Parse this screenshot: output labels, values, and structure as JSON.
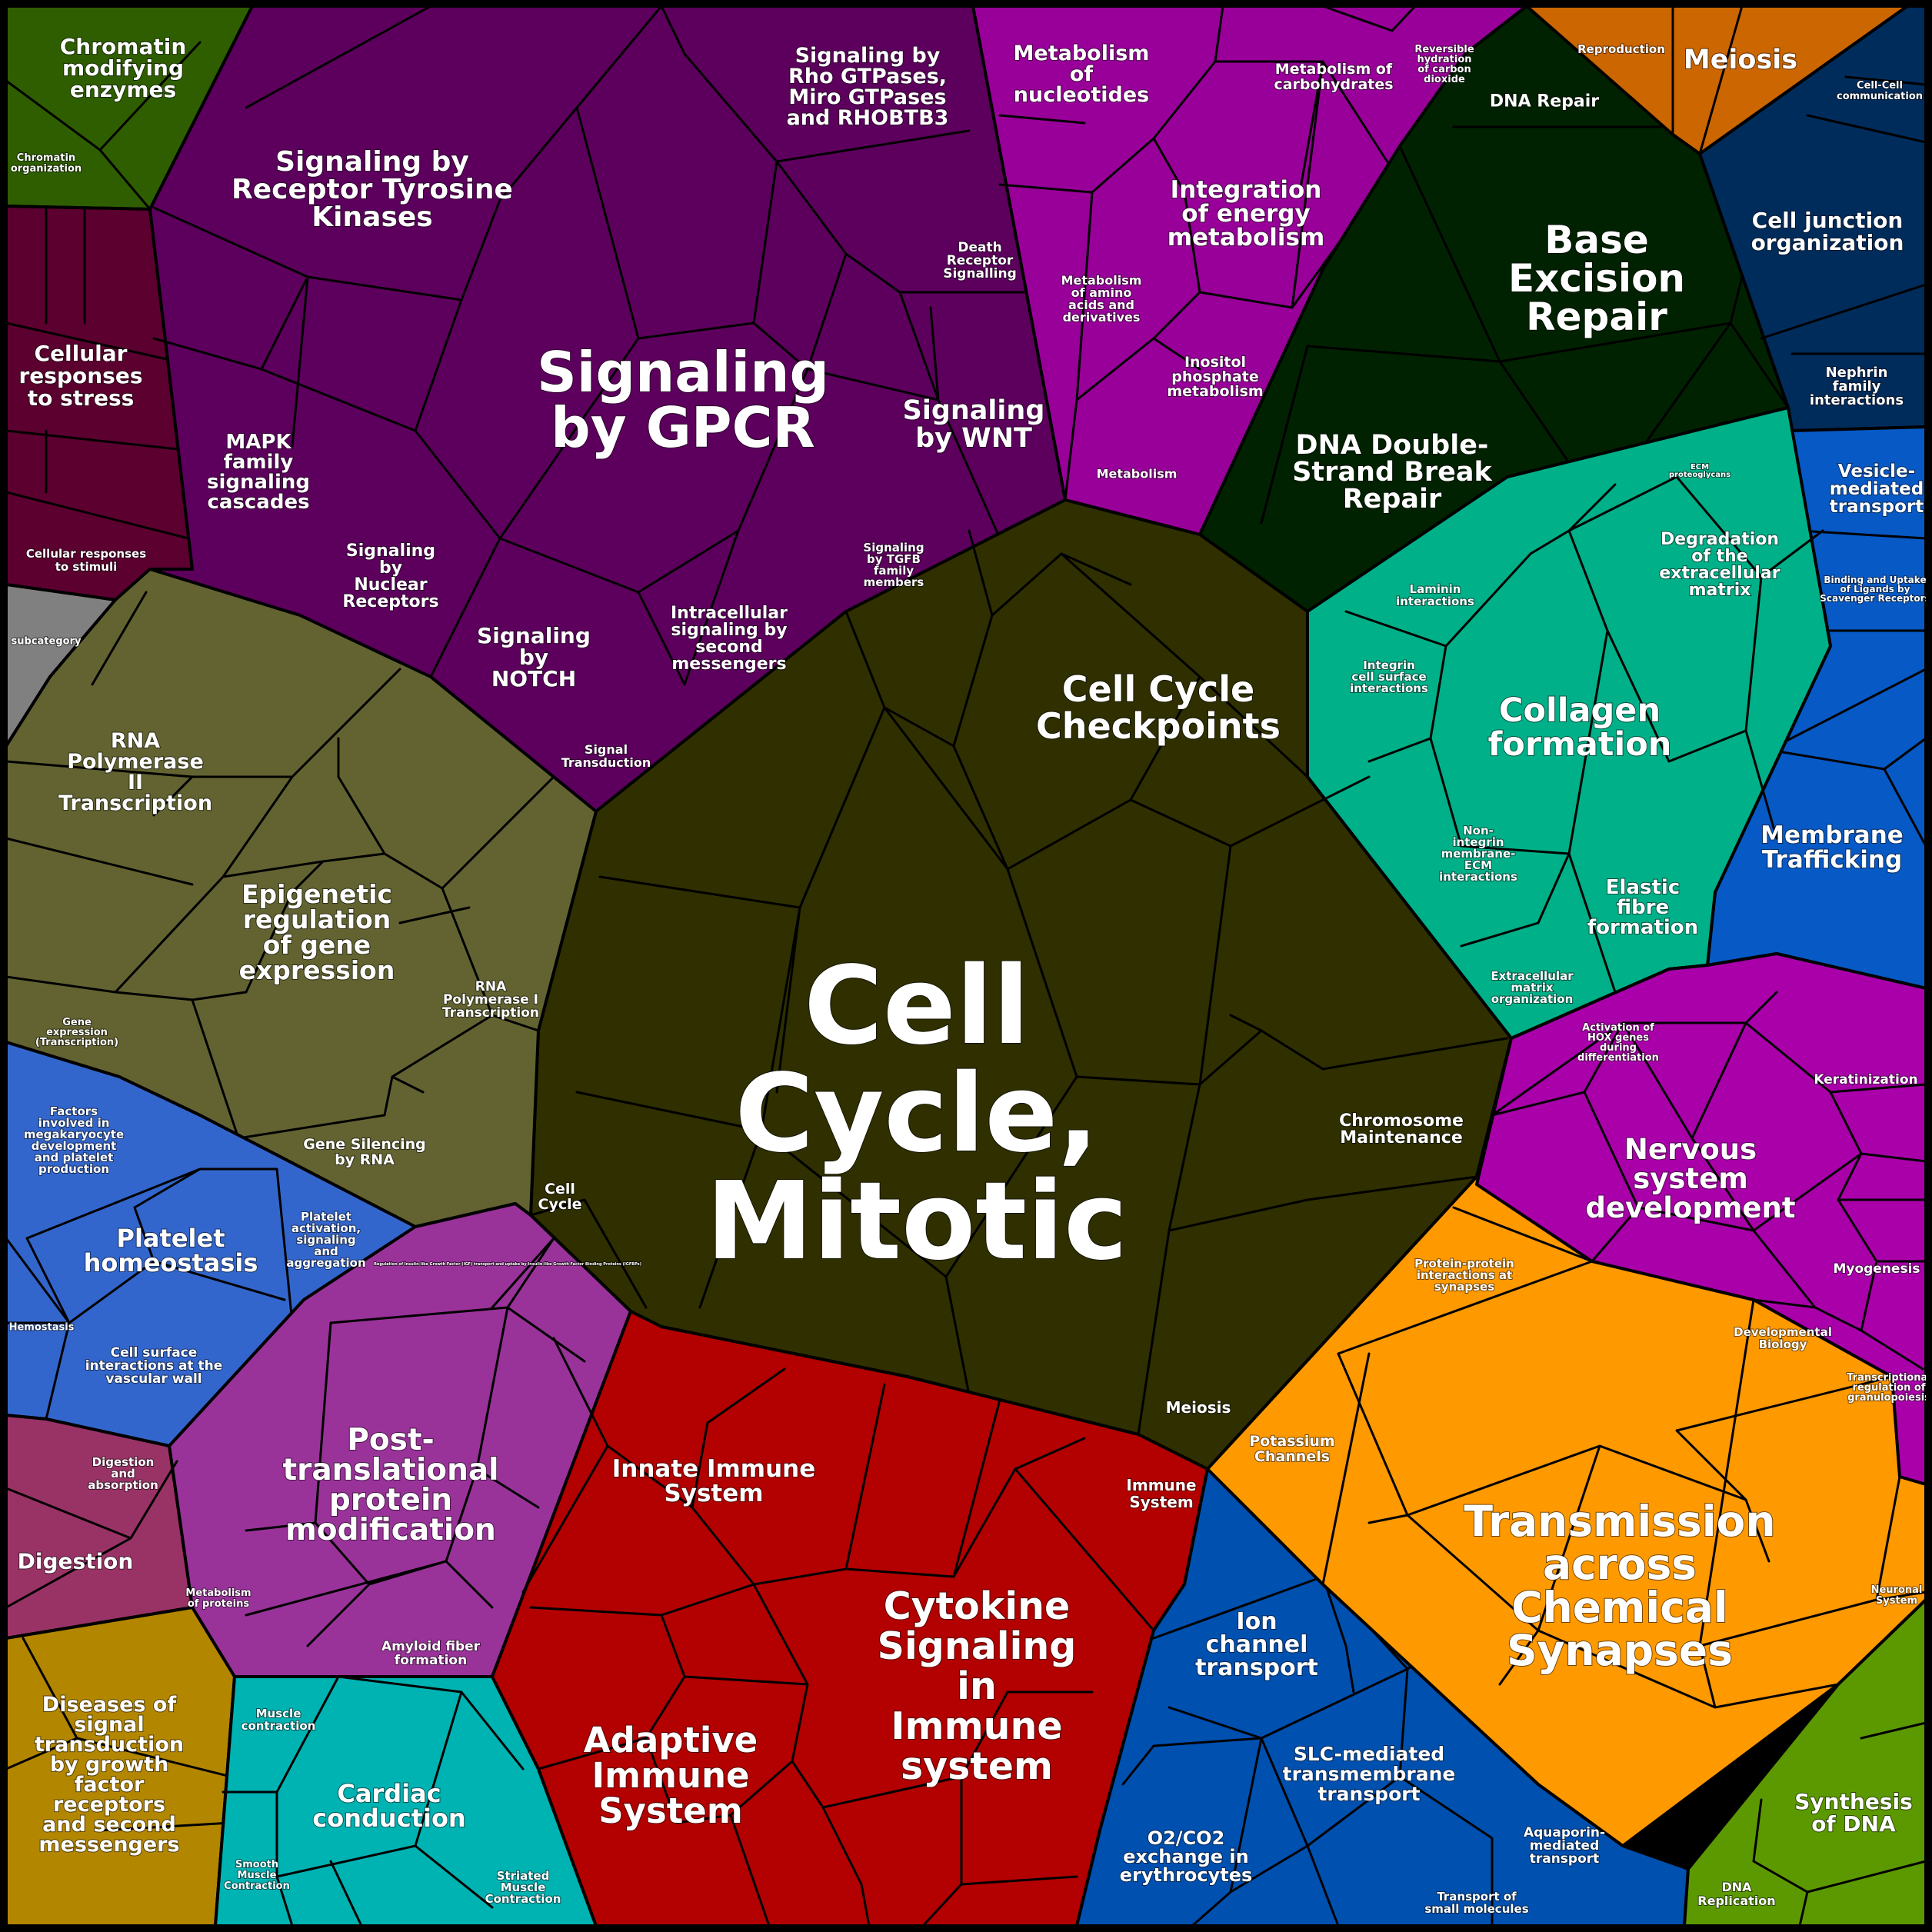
{
  "diagram": {
    "type": "voronoi-treemap",
    "cells": [
      {
        "id": "chromatin",
        "color": "#2f5e00",
        "labels": [
          {
            "text": "Chromatin modifying enzymes"
          },
          {
            "text": "Chromatin organization"
          }
        ]
      },
      {
        "id": "stress",
        "color": "#5c0030",
        "labels": [
          {
            "text": "Cellular responses to stress"
          },
          {
            "text": "Cellular responses to stimuli"
          }
        ]
      },
      {
        "id": "subcategory",
        "color": "#808080",
        "labels": [
          {
            "text": "subcategory"
          }
        ]
      },
      {
        "id": "signal",
        "color": "#5d005d",
        "labels": [
          {
            "text": "Signaling by GPCR"
          },
          {
            "text": "Signaling by Receptor Tyrosine Kinases"
          },
          {
            "text": "Signaling by Rho GTPases, Miro GTPases and RHOBTB3"
          },
          {
            "text": "Signaling by WNT"
          },
          {
            "text": "Death Receptor Signalling"
          },
          {
            "text": "MAPK family signaling cascades"
          },
          {
            "text": "Signaling by Nuclear Receptors"
          },
          {
            "text": "Signaling by NOTCH"
          },
          {
            "text": "Intracellular signaling by second messengers"
          },
          {
            "text": "Signaling by TGFB family members"
          },
          {
            "text": "Signal Transduction"
          }
        ]
      },
      {
        "id": "metab",
        "color": "#990099",
        "labels": [
          {
            "text": "Metabolism of nucleotides"
          },
          {
            "text": "Metabolism of carbohydrates"
          },
          {
            "text": "Reversible hydration of carbon dioxide"
          },
          {
            "text": "Integration of energy metabolism"
          },
          {
            "text": "Metabolism of amino acids and derivatives"
          },
          {
            "text": "Inositol phosphate metabolism"
          },
          {
            "text": "Metabolism"
          }
        ]
      },
      {
        "id": "repro",
        "color": "#cc6600",
        "labels": [
          {
            "text": "Meiosis"
          },
          {
            "text": "Reproduction"
          }
        ]
      },
      {
        "id": "dnarepair",
        "color": "#002200",
        "labels": [
          {
            "text": "Base Excision Repair"
          },
          {
            "text": "DNA Double-Strand Break Repair"
          },
          {
            "text": "DNA Repair"
          }
        ]
      },
      {
        "id": "celljunction",
        "color": "#002c5c",
        "labels": [
          {
            "text": "Cell junction organization"
          },
          {
            "text": "Cell-Cell communication"
          },
          {
            "text": "Nephrin family interactions"
          }
        ]
      },
      {
        "id": "vesicle",
        "color": "#0759c5",
        "labels": [
          {
            "text": "Vesicle-mediated transport"
          },
          {
            "text": "Binding and Uptake of Ligands by Scavenger Receptors"
          },
          {
            "text": "Membrane Trafficking"
          }
        ]
      },
      {
        "id": "ecm",
        "color": "#00b088",
        "labels": [
          {
            "text": "Collagen formation"
          },
          {
            "text": "Degradation of the extracellular matrix"
          },
          {
            "text": "ECM proteoglycans"
          },
          {
            "text": "Laminin interactions"
          },
          {
            "text": "Integrin cell surface interactions"
          },
          {
            "text": "Non-integrin membrane-ECM interactions"
          },
          {
            "text": "Elastic fibre formation"
          },
          {
            "text": "Extracellular matrix organization"
          }
        ]
      },
      {
        "id": "cellcycle",
        "color": "#2f2f00",
        "labels": [
          {
            "text": "Cell Cycle, Mitotic"
          },
          {
            "text": "Cell Cycle Checkpoints"
          },
          {
            "text": "Chromosome Maintenance"
          },
          {
            "text": "Cell Cycle"
          },
          {
            "text": "Meiosis"
          }
        ]
      },
      {
        "id": "gene",
        "color": "#636332",
        "labels": [
          {
            "text": "RNA Polymerase II Transcription"
          },
          {
            "text": "Epigenetic regulation of gene expression"
          },
          {
            "text": "RNA Polymerase I Transcription"
          },
          {
            "text": "Gene expression (Transcription)"
          },
          {
            "text": "Gene Silencing by RNA"
          }
        ]
      },
      {
        "id": "hemo",
        "color": "#3366cc",
        "labels": [
          {
            "text": "Platelet homeostasis"
          },
          {
            "text": "Factors involved in megakaryocyte development and platelet production"
          },
          {
            "text": "Platelet activation, signaling and aggregation"
          },
          {
            "text": "Hemostasis"
          },
          {
            "text": "Cell surface interactions at the vascular wall"
          }
        ]
      },
      {
        "id": "ptm",
        "color": "#993399",
        "labels": [
          {
            "text": "Post-translational protein modification"
          },
          {
            "text": "Metabolism of proteins"
          },
          {
            "text": "Amyloid fiber formation"
          },
          {
            "text": "Regulation of Insulin-like Growth Factor (IGF) transport and uptake by Insulin-like Growth Factor Binding Proteins (IGFBPs)"
          }
        ]
      },
      {
        "id": "digest",
        "color": "#993366",
        "labels": [
          {
            "text": "Digestion"
          },
          {
            "text": "Digestion and absorption"
          }
        ]
      },
      {
        "id": "disease",
        "color": "#b38600",
        "labels": [
          {
            "text": "Diseases of signal transduction by growth factor receptors and second messengers"
          }
        ]
      },
      {
        "id": "muscle",
        "color": "#00b3b3",
        "labels": [
          {
            "text": "Cardiac conduction"
          },
          {
            "text": "Muscle contraction"
          },
          {
            "text": "Smooth Muscle Contraction"
          },
          {
            "text": "Striated Muscle Contraction"
          }
        ]
      },
      {
        "id": "immune",
        "color": "#b30000",
        "labels": [
          {
            "text": "Cytokine Signaling in Immune system"
          },
          {
            "text": "Adaptive Immune System"
          },
          {
            "text": "Innate Immune System"
          },
          {
            "text": "Immune System"
          }
        ]
      },
      {
        "id": "transport",
        "color": "#0050b0",
        "labels": [
          {
            "text": "Ion channel transport"
          },
          {
            "text": "SLC-mediated transmembrane transport"
          },
          {
            "text": "O2/CO2 exchange in erythrocytes"
          },
          {
            "text": "Aquaporin-mediated transport"
          },
          {
            "text": "Transport of small molecules"
          }
        ]
      },
      {
        "id": "neuro",
        "color": "#ff9900",
        "labels": [
          {
            "text": "Transmission across Chemical Synapses"
          },
          {
            "text": "Protein-protein interactions at synapses"
          },
          {
            "text": "Potassium Channels"
          },
          {
            "text": "Neuronal System"
          }
        ]
      },
      {
        "id": "dev",
        "color": "#aa00aa",
        "labels": [
          {
            "text": "Nervous system development"
          },
          {
            "text": "Activation of HOX genes during differentiation"
          },
          {
            "text": "Keratinization"
          },
          {
            "text": "Myogenesis"
          },
          {
            "text": "Developmental Biology"
          },
          {
            "text": "Transcriptional regulation of granulopoiesis"
          }
        ]
      },
      {
        "id": "dnarep",
        "color": "#5c9900",
        "labels": [
          {
            "text": "Synthesis of DNA"
          },
          {
            "text": "DNA Replication"
          }
        ]
      }
    ]
  }
}
